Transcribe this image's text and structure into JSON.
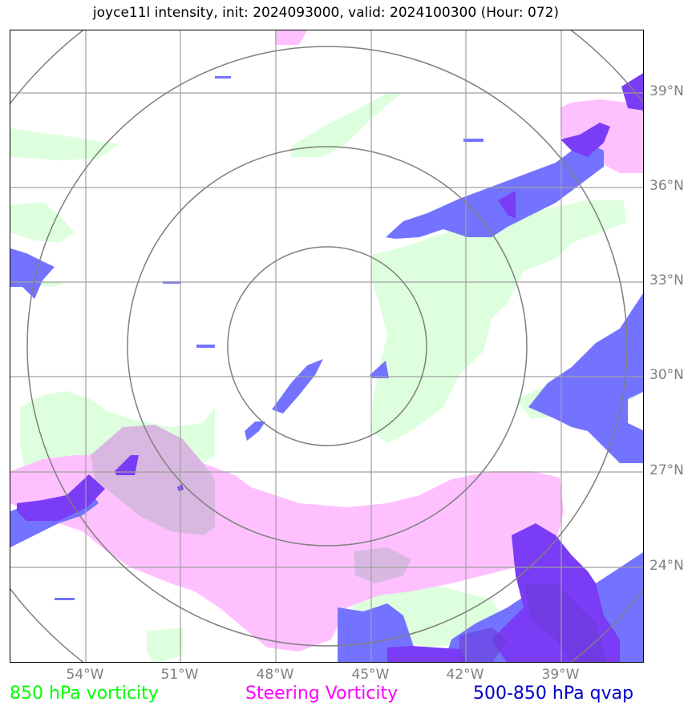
{
  "title": "joyce11l intensity, init: 2024093000, valid: 2024100300 (Hour: 072)",
  "lat_labels": [
    "39°N",
    "36°N",
    "33°N",
    "30°N",
    "27°N",
    "24°N"
  ],
  "lon_labels": [
    "54°W",
    "51°W",
    "48°W",
    "45°W",
    "42°W",
    "39°W"
  ],
  "legend": {
    "green": "850 hPa vorticity",
    "magenta": "Steering Vorticity",
    "blue": "500-850 hPa qvap"
  },
  "colors": {
    "vorticity_850": "#ddffdd",
    "steering_vorticity": "#ffc0ff",
    "qvap_blue": "#7373ff",
    "qvap_purple": "#7a3cf5",
    "overlap_lilac": "#d8b8e0",
    "grid": "#a0a0a0",
    "range_rings": "#7f7f7f"
  },
  "range_rings_count": 4
}
